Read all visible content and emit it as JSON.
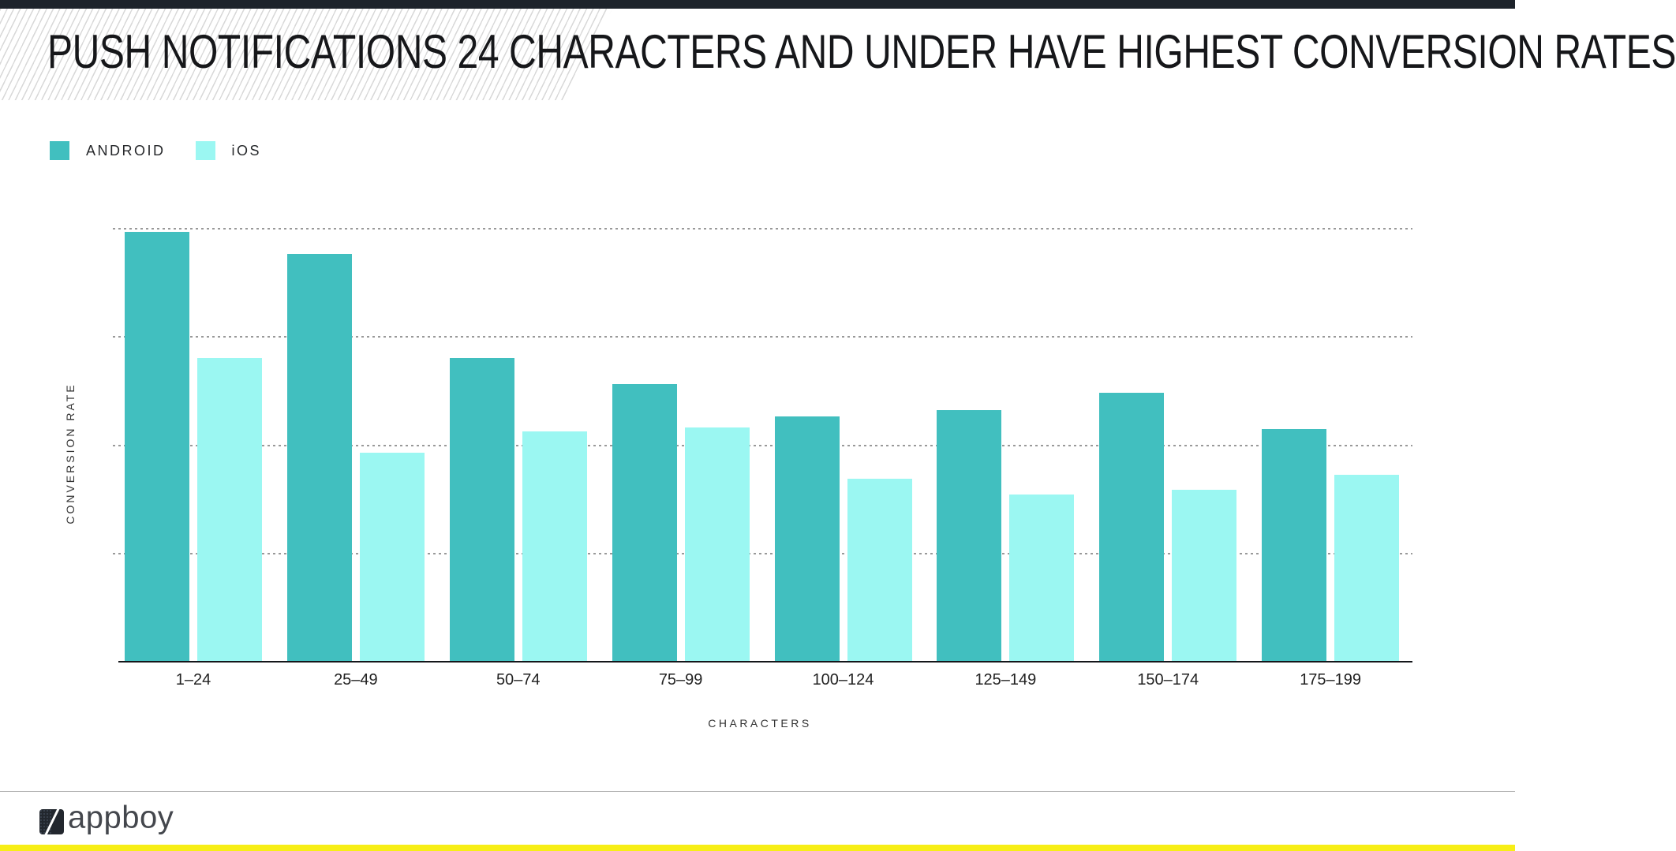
{
  "header": {
    "title": "PUSH NOTIFICATIONS 24 CHARACTERS AND UNDER HAVE HIGHEST CONVERSION RATES"
  },
  "chart_data": {
    "type": "bar",
    "title": "PUSH NOTIFICATIONS 24 CHARACTERS AND UNDER HAVE HIGHEST CONVERSION RATES",
    "categories": [
      "1–24",
      "25–49",
      "50–74",
      "75–99",
      "100–124",
      "125–149",
      "150–174",
      "175–199"
    ],
    "series": [
      {
        "name": "ANDROID",
        "color": "#41bfbf",
        "values": [
          99,
          94,
          70,
          64,
          56.5,
          58,
          62,
          53.5
        ]
      },
      {
        "name": "iOS",
        "color": "#9bf7f2",
        "values": [
          70,
          48,
          53,
          54,
          42,
          38.5,
          39.5,
          43
        ]
      }
    ],
    "xlabel": "CHARACTERS",
    "ylabel": "CONVERSION RATE",
    "ylim": [
      0,
      100
    ],
    "gridline_values": [
      25,
      50,
      75,
      100
    ],
    "grid": "horizontal-dotted",
    "legend_position": "top-left"
  },
  "footer": {
    "brand": "appboy"
  },
  "colors": {
    "top_bar": "#1d232b",
    "android": "#41bfbf",
    "ios": "#9bf7f2",
    "accent_yellow": "#f7ee16",
    "gridline": "#999999",
    "hatch_stripe": "#d9d9d9"
  }
}
